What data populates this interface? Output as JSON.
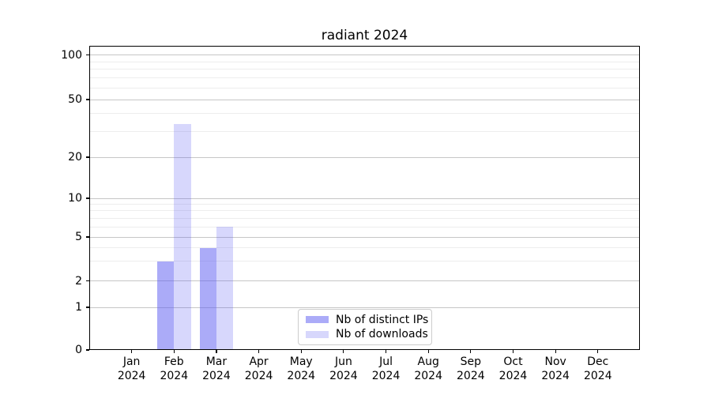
{
  "title": "radiant 2024",
  "chart_data": {
    "type": "bar",
    "title": "radiant 2024",
    "categories": [
      "Jan 2024",
      "Feb 2024",
      "Mar 2024",
      "Apr 2024",
      "May 2024",
      "Jun 2024",
      "Jul 2024",
      "Aug 2024",
      "Sep 2024",
      "Oct 2024",
      "Nov 2024",
      "Dec 2024"
    ],
    "series": [
      {
        "name": "Nb of distinct IPs",
        "color": "rgba(88,88,242,0.50)",
        "values": [
          0,
          3,
          4,
          0,
          0,
          0,
          0,
          0,
          0,
          0,
          0,
          0
        ]
      },
      {
        "name": "Nb of downloads",
        "color": "rgba(88,88,242,0.24)",
        "values": [
          0,
          34,
          6,
          0,
          0,
          0,
          0,
          0,
          0,
          0,
          0,
          0
        ]
      }
    ],
    "xlabel": "",
    "ylabel": "",
    "yaxis": {
      "scale": "log-like, compressed below 10, linear 0-1",
      "ticks": [
        0,
        1,
        2,
        5,
        10,
        20,
        50,
        100
      ],
      "tick_labels": [
        "0",
        "1",
        "2",
        "5",
        "10",
        "20",
        "50",
        "100"
      ],
      "minor_gridlines": [
        3,
        4,
        6,
        7,
        8,
        9,
        30,
        40,
        60,
        70,
        80,
        90
      ],
      "range": [
        0,
        110
      ]
    },
    "grid": "horizontal, major + minor",
    "legend_position": "lower center"
  }
}
